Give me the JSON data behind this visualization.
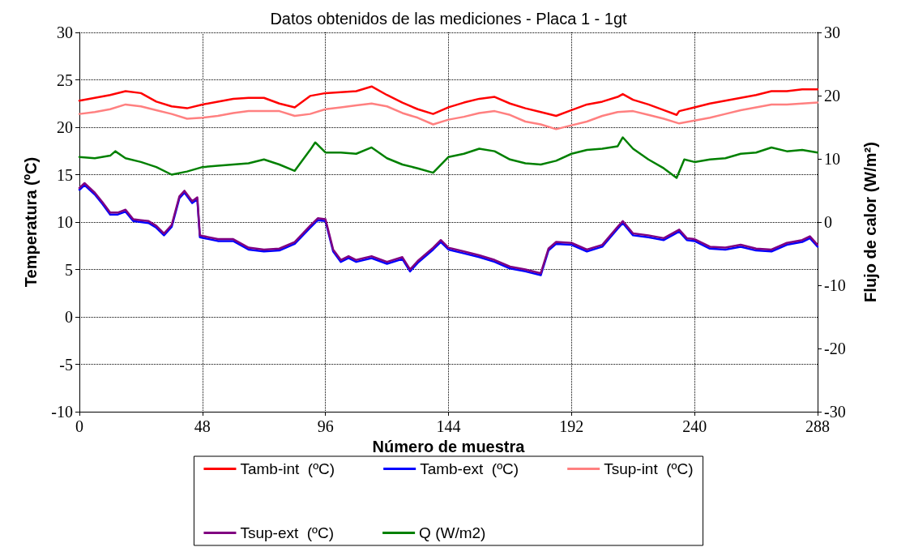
{
  "chart_data": {
    "type": "line",
    "title": "Datos obtenidos de las mediciones - Placa 1 - 1gt",
    "xlabel": "Número de muestra",
    "ylabel": "Temperatura (ºC)",
    "y2label": "Flujo de calor (W/m²)",
    "xlim": [
      0,
      288
    ],
    "xticks": [
      0,
      48,
      96,
      144,
      192,
      240,
      288
    ],
    "ylim": [
      -10,
      30
    ],
    "yticks": [
      -10,
      -5,
      0,
      5,
      10,
      15,
      20,
      25,
      30
    ],
    "y2lim": [
      -30,
      30
    ],
    "y2ticks": [
      -30,
      -20,
      -10,
      0,
      10,
      20,
      30
    ],
    "grid": true,
    "legend": "bottom",
    "marker": "none",
    "line_style": "solid",
    "series": [
      {
        "name": "Tamb-int  (ºC)",
        "color": "#ff0000",
        "x": [
          0,
          6,
          12,
          18,
          24,
          30,
          36,
          42,
          48,
          54,
          60,
          66,
          72,
          78,
          84,
          90,
          96,
          102,
          108,
          114,
          120,
          126,
          132,
          138,
          144,
          150,
          156,
          162,
          168,
          174,
          180,
          186,
          192,
          198,
          204,
          210,
          212,
          216,
          222,
          228,
          233,
          234,
          240,
          246,
          252,
          258,
          264,
          270,
          276,
          282,
          288
        ],
        "values": [
          22.8,
          23.1,
          23.4,
          23.8,
          23.6,
          22.7,
          22.2,
          22.0,
          22.4,
          22.7,
          23.0,
          23.1,
          23.1,
          22.5,
          22.1,
          23.3,
          23.6,
          23.7,
          23.8,
          24.3,
          23.4,
          22.6,
          21.9,
          21.4,
          22.1,
          22.6,
          23.0,
          23.2,
          22.5,
          22.0,
          21.6,
          21.2,
          21.8,
          22.4,
          22.7,
          23.2,
          23.5,
          22.9,
          22.4,
          21.8,
          21.3,
          21.7,
          22.1,
          22.5,
          22.8,
          23.1,
          23.4,
          23.8,
          23.8,
          24.0,
          24.0
        ]
      },
      {
        "name": "Tamb-ext  (ºC)",
        "color": "#0000ff",
        "x": [
          0,
          2,
          6,
          9,
          12,
          15,
          18,
          21,
          24,
          27,
          30,
          33,
          36,
          39,
          41,
          44,
          46,
          47,
          54,
          60,
          66,
          72,
          78,
          84,
          90,
          93,
          96,
          99,
          102,
          105,
          108,
          114,
          120,
          126,
          129,
          132,
          138,
          141,
          144,
          150,
          156,
          162,
          168,
          174,
          180,
          183,
          186,
          192,
          198,
          204,
          210,
          212,
          216,
          222,
          228,
          234,
          237,
          240,
          246,
          252,
          258,
          264,
          270,
          276,
          282,
          285,
          288
        ],
        "values": [
          13.4,
          13.9,
          12.9,
          11.9,
          10.8,
          10.8,
          11.1,
          10.1,
          10.0,
          9.9,
          9.4,
          8.6,
          9.5,
          12.5,
          13.1,
          12.0,
          12.4,
          8.4,
          8.0,
          8.0,
          7.1,
          6.9,
          7.0,
          7.7,
          9.4,
          10.2,
          10.1,
          6.9,
          5.8,
          6.2,
          5.8,
          6.2,
          5.6,
          6.1,
          4.8,
          5.7,
          7.1,
          7.9,
          7.1,
          6.7,
          6.3,
          5.8,
          5.1,
          4.8,
          4.4,
          7.0,
          7.7,
          7.6,
          6.9,
          7.4,
          9.3,
          9.9,
          8.6,
          8.4,
          8.1,
          9.0,
          8.1,
          8.0,
          7.2,
          7.1,
          7.4,
          7.0,
          6.9,
          7.6,
          7.9,
          8.3,
          7.4
        ]
      },
      {
        "name": "Tsup-int  (ºC)",
        "color": "#ff8080",
        "x": [
          0,
          6,
          12,
          18,
          24,
          30,
          36,
          42,
          48,
          54,
          60,
          66,
          72,
          78,
          84,
          90,
          96,
          102,
          108,
          114,
          120,
          126,
          132,
          138,
          144,
          150,
          156,
          162,
          168,
          174,
          180,
          186,
          192,
          198,
          204,
          210,
          216,
          222,
          228,
          234,
          240,
          246,
          252,
          258,
          264,
          270,
          276,
          282,
          288
        ],
        "values": [
          21.4,
          21.6,
          21.9,
          22.4,
          22.2,
          21.8,
          21.4,
          20.9,
          21.0,
          21.2,
          21.5,
          21.7,
          21.7,
          21.7,
          21.2,
          21.4,
          21.9,
          22.1,
          22.3,
          22.5,
          22.2,
          21.5,
          21.0,
          20.3,
          20.8,
          21.1,
          21.5,
          21.7,
          21.3,
          20.6,
          20.3,
          19.8,
          20.2,
          20.6,
          21.2,
          21.6,
          21.7,
          21.3,
          20.9,
          20.4,
          20.7,
          21.0,
          21.4,
          21.8,
          22.1,
          22.4,
          22.4,
          22.5,
          22.6
        ]
      },
      {
        "name": "Tsup-ext  (ºC)",
        "color": "#800080",
        "x": [
          0,
          2,
          6,
          9,
          12,
          15,
          18,
          21,
          24,
          27,
          30,
          33,
          36,
          39,
          41,
          44,
          46,
          47,
          54,
          60,
          66,
          72,
          78,
          84,
          90,
          93,
          96,
          99,
          102,
          105,
          108,
          114,
          120,
          126,
          129,
          132,
          138,
          141,
          144,
          150,
          156,
          162,
          168,
          174,
          180,
          183,
          186,
          192,
          198,
          204,
          210,
          212,
          216,
          222,
          228,
          234,
          237,
          240,
          246,
          252,
          258,
          264,
          270,
          276,
          282,
          285,
          288
        ],
        "values": [
          13.6,
          14.1,
          13.1,
          12.1,
          11.0,
          11.0,
          11.3,
          10.3,
          10.2,
          10.1,
          9.6,
          8.8,
          9.7,
          12.7,
          13.3,
          12.2,
          12.6,
          8.6,
          8.2,
          8.2,
          7.3,
          7.1,
          7.2,
          7.9,
          9.6,
          10.4,
          10.3,
          7.1,
          6.0,
          6.4,
          6.0,
          6.4,
          5.8,
          6.3,
          5.0,
          5.9,
          7.3,
          8.1,
          7.3,
          6.9,
          6.5,
          6.0,
          5.3,
          5.0,
          4.6,
          7.2,
          7.9,
          7.8,
          7.1,
          7.6,
          9.5,
          10.1,
          8.8,
          8.6,
          8.3,
          9.2,
          8.3,
          8.2,
          7.4,
          7.3,
          7.6,
          7.2,
          7.1,
          7.8,
          8.1,
          8.5,
          7.6
        ]
      },
      {
        "name": "Q (W/m2)",
        "color": "#008000",
        "axis": "y2",
        "x": [
          0,
          6,
          12,
          14,
          18,
          24,
          30,
          36,
          42,
          48,
          54,
          60,
          66,
          72,
          78,
          84,
          90,
          92,
          96,
          102,
          108,
          114,
          120,
          126,
          132,
          138,
          144,
          150,
          156,
          162,
          168,
          174,
          180,
          186,
          192,
          198,
          204,
          210,
          212,
          216,
          222,
          228,
          233,
          236,
          240,
          246,
          252,
          258,
          264,
          270,
          276,
          282,
          288
        ],
        "values": [
          10.3,
          10.1,
          10.5,
          11.2,
          10.1,
          9.5,
          8.7,
          7.5,
          8.0,
          8.7,
          8.9,
          9.1,
          9.3,
          9.9,
          9.1,
          8.1,
          11.4,
          12.6,
          11.0,
          11.0,
          10.8,
          11.8,
          10.1,
          9.1,
          8.5,
          7.8,
          10.3,
          10.8,
          11.6,
          11.2,
          9.9,
          9.3,
          9.1,
          9.7,
          10.8,
          11.4,
          11.6,
          12.0,
          13.4,
          11.6,
          9.9,
          8.5,
          7.0,
          9.9,
          9.5,
          9.9,
          10.1,
          10.8,
          11.0,
          11.8,
          11.2,
          11.4,
          11.0
        ]
      }
    ]
  }
}
